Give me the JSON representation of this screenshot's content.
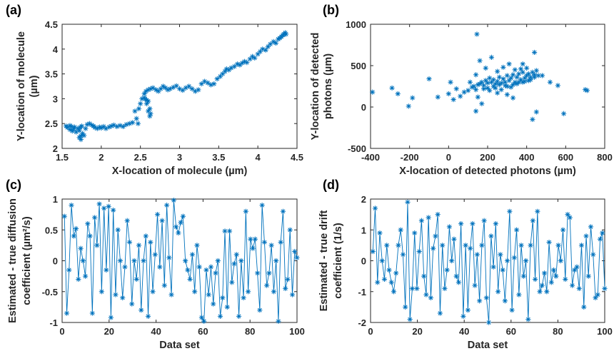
{
  "colors": {
    "series": "#0072BD",
    "axis": "#262626"
  },
  "chart_data": [
    {
      "id": "a",
      "panel_label": "(a)",
      "type": "scatter",
      "marker": "asterisk",
      "xlabel": "X-location of molecule (µm)",
      "ylabel": "Y-location of molecule",
      "ylabel2": "(µm)",
      "xlim": [
        1.5,
        4.5
      ],
      "ylim": [
        2,
        4.5
      ],
      "xticks": [
        "1.5",
        "2",
        "2.5",
        "3",
        "3.5",
        "4",
        "4.5"
      ],
      "yticks": [
        "2",
        "2.5",
        "3",
        "3.5",
        "4",
        "4.5"
      ],
      "x": [
        1.55,
        1.57,
        1.6,
        1.6,
        1.62,
        1.63,
        1.65,
        1.66,
        1.68,
        1.7,
        1.72,
        1.73,
        1.75,
        1.74,
        1.72,
        1.74,
        1.76,
        1.78,
        1.8,
        1.82,
        1.85,
        1.88,
        1.9,
        1.92,
        1.95,
        1.98,
        2.0,
        2.03,
        2.06,
        2.1,
        2.13,
        2.16,
        2.2,
        2.24,
        2.28,
        2.32,
        2.36,
        2.4,
        2.43,
        2.45,
        2.47,
        2.48,
        2.5,
        2.52,
        2.55,
        2.58,
        2.6,
        2.62,
        2.63,
        2.62,
        2.6,
        2.58,
        2.56,
        2.55,
        2.57,
        2.6,
        2.63,
        2.66,
        2.7,
        2.73,
        2.76,
        2.79,
        2.82,
        2.85,
        2.88,
        2.92,
        2.96,
        3.0,
        3.04,
        3.08,
        3.12,
        3.16,
        3.2,
        3.24,
        3.28,
        3.32,
        3.36,
        3.4,
        3.44,
        3.48,
        3.52,
        3.55,
        3.58,
        3.6,
        3.63,
        3.66,
        3.7,
        3.74,
        3.77,
        3.8,
        3.83,
        3.86,
        3.9,
        3.93,
        3.96,
        4.0,
        4.03,
        4.06,
        4.1,
        4.13,
        4.16,
        4.2,
        4.23,
        4.26,
        4.28,
        4.3,
        4.32,
        4.33,
        4.35,
        4.36
      ],
      "y": [
        2.45,
        2.42,
        2.46,
        2.38,
        2.44,
        2.35,
        2.4,
        2.43,
        2.33,
        2.4,
        2.36,
        2.42,
        2.45,
        2.25,
        2.22,
        2.18,
        2.3,
        2.26,
        2.4,
        2.48,
        2.5,
        2.47,
        2.45,
        2.42,
        2.4,
        2.43,
        2.41,
        2.44,
        2.4,
        2.43,
        2.45,
        2.47,
        2.44,
        2.46,
        2.44,
        2.48,
        2.5,
        2.52,
        2.75,
        2.6,
        2.5,
        2.8,
        2.9,
        3.0,
        3.02,
        2.97,
        2.95,
        2.8,
        2.7,
        2.65,
        2.75,
        2.9,
        3.0,
        3.1,
        3.15,
        3.18,
        3.2,
        3.22,
        3.18,
        3.15,
        3.2,
        3.25,
        3.22,
        3.18,
        3.2,
        3.23,
        3.26,
        3.2,
        3.17,
        3.22,
        3.25,
        3.2,
        3.15,
        3.18,
        3.3,
        3.35,
        3.32,
        3.28,
        3.3,
        3.4,
        3.45,
        3.5,
        3.55,
        3.6,
        3.58,
        3.62,
        3.65,
        3.7,
        3.68,
        3.72,
        3.75,
        3.73,
        3.8,
        3.85,
        3.82,
        3.9,
        3.95,
        4.0,
        3.98,
        4.05,
        4.1,
        4.15,
        4.12,
        4.2,
        4.22,
        4.25,
        4.28,
        4.3,
        4.33,
        4.3
      ]
    },
    {
      "id": "b",
      "panel_label": "(b)",
      "type": "scatter",
      "marker": "asterisk",
      "xlabel": "X-location of detected photons (µm)",
      "ylabel": "Y-location of detected",
      "ylabel2": "photons (µm)",
      "xlim": [
        -400,
        800
      ],
      "ylim": [
        -500,
        1000
      ],
      "xticks": [
        "-400",
        "-200",
        "0",
        "200",
        "400",
        "600",
        "800"
      ],
      "yticks": [
        "-500",
        "0",
        "500",
        "1000"
      ],
      "x": [
        -390,
        -290,
        -260,
        -205,
        -185,
        -100,
        -55,
        0,
        10,
        25,
        40,
        60,
        80,
        100,
        110,
        120,
        130,
        140,
        145,
        150,
        160,
        170,
        180,
        190,
        200,
        210,
        220,
        230,
        240,
        250,
        260,
        270,
        280,
        290,
        300,
        310,
        320,
        330,
        340,
        350,
        360,
        370,
        380,
        390,
        400,
        410,
        420,
        430,
        440,
        450,
        460,
        200,
        230,
        260,
        290,
        320,
        350,
        380,
        410,
        180,
        210,
        240,
        270,
        300,
        330,
        360,
        390,
        420,
        440,
        150,
        140,
        160,
        190,
        220,
        250,
        280,
        310,
        340,
        370,
        400,
        480,
        520,
        560,
        590,
        700,
        710,
        140,
        170,
        250,
        300,
        430,
        450,
        440,
        380,
        330
      ],
      "y": [
        180,
        230,
        160,
        10,
        110,
        340,
        120,
        160,
        300,
        90,
        220,
        130,
        180,
        200,
        300,
        240,
        250,
        210,
        880,
        270,
        280,
        300,
        260,
        320,
        290,
        350,
        300,
        330,
        280,
        310,
        360,
        290,
        340,
        300,
        380,
        320,
        350,
        390,
        300,
        360,
        400,
        330,
        420,
        350,
        380,
        400,
        360,
        420,
        390,
        440,
        380,
        230,
        250,
        270,
        260,
        240,
        280,
        300,
        320,
        220,
        200,
        230,
        210,
        250,
        270,
        300,
        310,
        330,
        360,
        120,
        390,
        560,
        470,
        600,
        430,
        480,
        520,
        450,
        460,
        470,
        380,
        300,
        260,
        -80,
        210,
        200,
        -50,
        40,
        170,
        150,
        -150,
        -60,
        660,
        520,
        110
      ]
    },
    {
      "id": "c",
      "panel_label": "(c)",
      "type": "line",
      "marker": "asterisk",
      "xlabel": "Data set",
      "ylabel": "Estimated - true diffusion",
      "ylabel2": "coefficient (µm²/s)",
      "xlim": [
        0,
        100
      ],
      "ylim": [
        -1,
        1
      ],
      "xticks": [
        "0",
        "20",
        "40",
        "60",
        "80",
        "100"
      ],
      "yticks": [
        "-1",
        "-0.5",
        "0",
        "0.5",
        "1"
      ],
      "y": [
        0.72,
        -0.85,
        -0.15,
        0.9,
        0.4,
        0.52,
        -0.3,
        0.2,
        0.0,
        -0.25,
        0.6,
        0.4,
        -0.85,
        0.7,
        0.25,
        0.92,
        -0.5,
        0.85,
        -0.15,
        0.88,
        -0.92,
        0.82,
        -0.55,
        0.5,
        0.0,
        -0.6,
        -0.1,
        0.65,
        0.3,
        -0.7,
        0.0,
        -0.3,
        0.25,
        -0.8,
        0.0,
        0.4,
        -0.9,
        0.3,
        -0.5,
        0.1,
        0.75,
        -0.1,
        0.65,
        -0.4,
        0.9,
        0.05,
        -0.55,
        0.98,
        0.55,
        0.45,
        0.62,
        0.72,
        0.0,
        -0.15,
        -0.3,
        0.1,
        -0.5,
        0.25,
        -0.1,
        -0.92,
        -0.98,
        -0.15,
        -0.55,
        -0.1,
        -0.7,
        -0.2,
        0.0,
        -0.9,
        -0.6,
        0.48,
        -0.75,
        0.48,
        -0.35,
        -0.05,
        0.1,
        -0.9,
        0.0,
        -0.6,
        0.8,
        -0.5,
        0.35,
        0.2,
        0.35,
        -0.2,
        -0.8,
        0.9,
        0.3,
        -0.4,
        -0.2,
        0.25,
        -0.5,
        0.0,
        -0.98,
        0.3,
        0.8,
        -0.45,
        -0.3,
        0.5,
        -0.55,
        0.15,
        0.05
      ]
    },
    {
      "id": "d",
      "panel_label": "(d)",
      "type": "line",
      "marker": "asterisk",
      "xlabel": "Data set",
      "ylabel": "Estimated - true drift",
      "ylabel2": "coefficient (1/s)",
      "xlim": [
        0,
        100
      ],
      "ylim": [
        -2,
        2
      ],
      "xticks": [
        "0",
        "20",
        "40",
        "60",
        "80",
        "100"
      ],
      "yticks": [
        "-2",
        "-1",
        "0",
        "1",
        "2"
      ],
      "y": [
        0.3,
        1.7,
        -0.7,
        0.9,
        0.0,
        -0.6,
        0.5,
        -0.3,
        -0.7,
        -1.0,
        -0.4,
        0.5,
        1.0,
        0.2,
        -1.5,
        1.9,
        -1.9,
        -0.9,
        0.9,
        -0.9,
        0.3,
        1.3,
        -0.5,
        -1.1,
        1.4,
        -1.2,
        0.4,
        0.8,
        1.5,
        -1.7,
        0.5,
        -0.9,
        -0.3,
        1.1,
        0.0,
        0.7,
        -0.5,
        -0.7,
        1.2,
        -1.8,
        0.5,
        -1.6,
        0.4,
        1.2,
        -0.8,
        0.2,
        -1.3,
        0.5,
        1.3,
        -1.2,
        -2.0,
        0.8,
        -0.2,
        1.2,
        -1.0,
        0.2,
        -0.3,
        -1.3,
        0.0,
        1.6,
        -1.6,
        0.1,
        1.0,
        -1.1,
        0.5,
        -0.5,
        0.0,
        -1.9,
        0.5,
        1.3,
        -0.6,
        1.6,
        -1.0,
        -0.8,
        -0.4,
        -1.0,
        0.6,
        -0.7,
        -0.3,
        -0.5,
        0.5,
        0.0,
        1.0,
        -0.6,
        1.5,
        1.4,
        -0.8,
        -0.3,
        -0.2,
        -0.9,
        0.5,
        -1.5,
        0.8,
        -0.5,
        1.1,
        0.2,
        -1.2,
        -1.1,
        0.7,
        0.9,
        -0.9
      ]
    }
  ]
}
